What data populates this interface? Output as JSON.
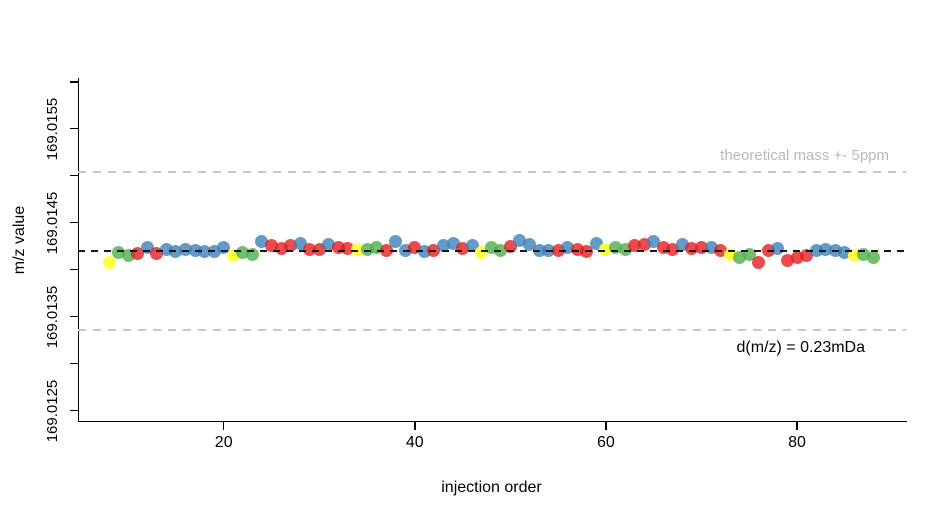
{
  "chart_data": {
    "type": "scatter",
    "title": "",
    "xlabel": "injection order",
    "ylabel": "m/z value",
    "xlim": [
      4.7,
      91.4
    ],
    "ylim": [
      169.01239,
      169.01604
    ],
    "x_ticks": [
      20,
      40,
      60,
      80
    ],
    "y_tick_marks": [
      169.0125,
      169.013,
      169.0135,
      169.014,
      169.0145,
      169.015,
      169.0155,
      169.016
    ],
    "y_tick_labels": [
      169.0125,
      169.0135,
      169.0145,
      169.0155
    ],
    "grid": false,
    "legend": "none",
    "reference_lines": {
      "theoretical_mass": {
        "value": 169.0142,
        "style": "dashed",
        "color": "#161616"
      },
      "upper_5ppm": {
        "value": 169.015045,
        "style": "dashed",
        "color": "#c6c6c6"
      },
      "lower_5ppm": {
        "value": 169.013355,
        "style": "dashed",
        "color": "#c6c6c6"
      }
    },
    "annotations": {
      "band_label": "theoretical mass +- 5ppm",
      "band_label_color": "#b9b9b9",
      "delta_label": "d(m/z) = 0.23mDa",
      "delta_label_color": "#000000"
    },
    "groups": {
      "blue": "#377eb8",
      "red": "#e41a1c",
      "green": "#4daf4a",
      "yellow": "#ffff33"
    },
    "points": [
      [
        8,
        169.01408,
        "yellow"
      ],
      [
        9,
        169.01418,
        "green"
      ],
      [
        10,
        169.01415,
        "green"
      ],
      [
        11,
        169.01417,
        "red"
      ],
      [
        12,
        169.01424,
        "blue"
      ],
      [
        13,
        169.01417,
        "red"
      ],
      [
        14,
        169.01421,
        "blue"
      ],
      [
        15,
        169.01419,
        "blue"
      ],
      [
        16,
        169.01421,
        "blue"
      ],
      [
        17,
        169.0142,
        "blue"
      ],
      [
        18,
        169.01419,
        "blue"
      ],
      [
        19,
        169.01419,
        "blue"
      ],
      [
        20,
        169.01424,
        "blue"
      ],
      [
        21,
        169.01415,
        "yellow"
      ],
      [
        22,
        169.01418,
        "green"
      ],
      [
        23,
        169.01416,
        "green"
      ],
      [
        24,
        169.0143,
        "blue"
      ],
      [
        25,
        169.01426,
        "red"
      ],
      [
        26,
        169.01423,
        "red"
      ],
      [
        27,
        169.01426,
        "red"
      ],
      [
        28,
        169.01428,
        "blue"
      ],
      [
        29,
        169.01422,
        "red"
      ],
      [
        30,
        169.01422,
        "red"
      ],
      [
        31,
        169.01427,
        "blue"
      ],
      [
        32,
        169.01424,
        "red"
      ],
      [
        33,
        169.01423,
        "red"
      ],
      [
        34,
        169.01422,
        "yellow"
      ],
      [
        35,
        169.01421,
        "green"
      ],
      [
        36,
        169.01424,
        "green"
      ],
      [
        37,
        169.0142,
        "red"
      ],
      [
        38,
        169.0143,
        "blue"
      ],
      [
        39,
        169.0142,
        "blue"
      ],
      [
        40,
        169.01424,
        "red"
      ],
      [
        41,
        169.01419,
        "blue"
      ],
      [
        42,
        169.0142,
        "red"
      ],
      [
        43,
        169.01426,
        "blue"
      ],
      [
        44,
        169.01428,
        "blue"
      ],
      [
        45,
        169.01423,
        "red"
      ],
      [
        46,
        169.01426,
        "blue"
      ],
      [
        47,
        169.01418,
        "yellow"
      ],
      [
        48,
        169.01424,
        "green"
      ],
      [
        49,
        169.0142,
        "green"
      ],
      [
        50,
        169.01425,
        "red"
      ],
      [
        51,
        169.01431,
        "blue"
      ],
      [
        52,
        169.01427,
        "blue"
      ],
      [
        53,
        169.0142,
        "blue"
      ],
      [
        54,
        169.0142,
        "blue"
      ],
      [
        55,
        169.0142,
        "red"
      ],
      [
        56,
        169.01424,
        "blue"
      ],
      [
        57,
        169.01422,
        "red"
      ],
      [
        58,
        169.01419,
        "red"
      ],
      [
        59,
        169.01428,
        "blue"
      ],
      [
        60,
        169.01422,
        "yellow"
      ],
      [
        61,
        169.01424,
        "green"
      ],
      [
        62,
        169.01422,
        "green"
      ],
      [
        63,
        169.01426,
        "red"
      ],
      [
        64,
        169.01427,
        "red"
      ],
      [
        65,
        169.0143,
        "blue"
      ],
      [
        66,
        169.01424,
        "red"
      ],
      [
        67,
        169.01422,
        "red"
      ],
      [
        68,
        169.01427,
        "blue"
      ],
      [
        69,
        169.01423,
        "red"
      ],
      [
        70,
        169.01424,
        "red"
      ],
      [
        71,
        169.01424,
        "blue"
      ],
      [
        72,
        169.0142,
        "red"
      ],
      [
        73,
        169.01416,
        "yellow"
      ],
      [
        74,
        169.01413,
        "green"
      ],
      [
        75,
        169.01416,
        "green"
      ],
      [
        76,
        169.01408,
        "red"
      ],
      [
        77,
        169.0142,
        "red"
      ],
      [
        78,
        169.01423,
        "blue"
      ],
      [
        79,
        169.0141,
        "red"
      ],
      [
        80,
        169.01413,
        "red"
      ],
      [
        81,
        169.01415,
        "red"
      ],
      [
        82,
        169.0142,
        "blue"
      ],
      [
        83,
        169.01421,
        "blue"
      ],
      [
        84,
        169.0142,
        "blue"
      ],
      [
        85,
        169.01418,
        "blue"
      ],
      [
        86,
        169.01415,
        "yellow"
      ],
      [
        87,
        169.01416,
        "green"
      ],
      [
        88,
        169.01413,
        "green"
      ]
    ]
  }
}
